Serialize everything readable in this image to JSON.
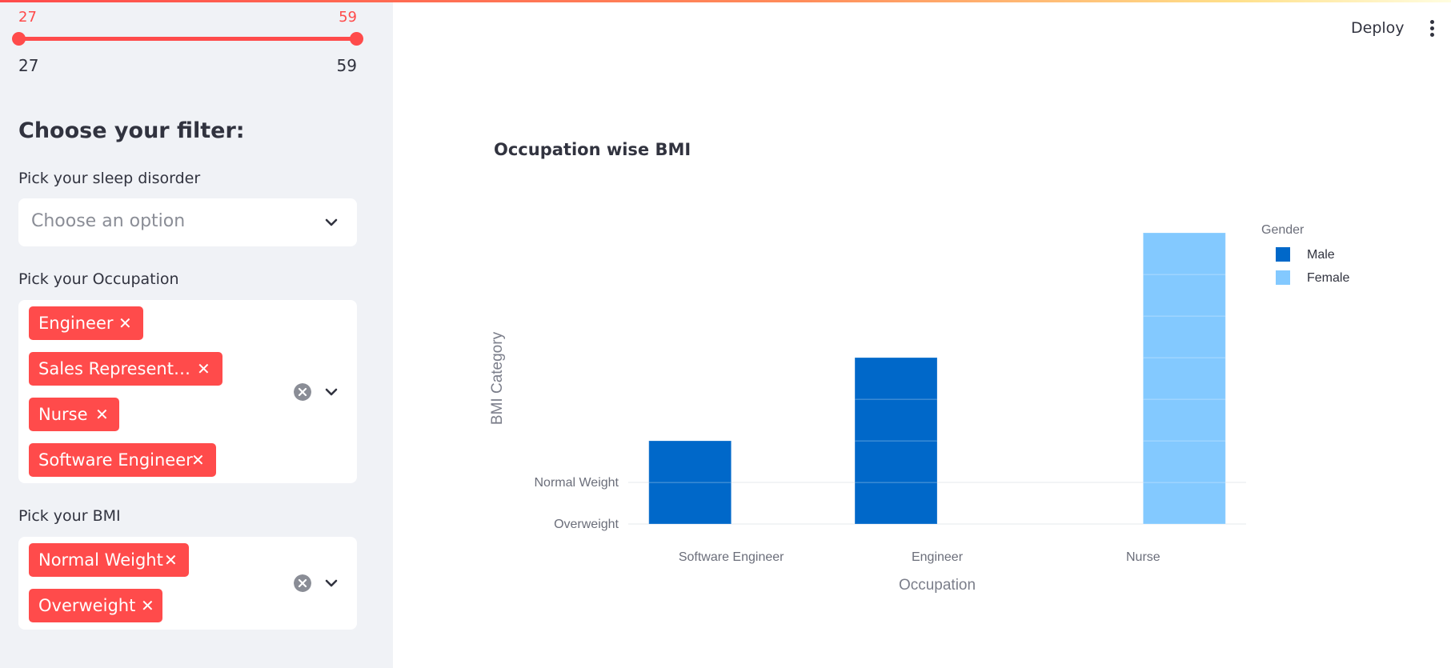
{
  "sidebar": {
    "age_slider": {
      "min_selected": "27",
      "max_selected": "59",
      "range_min": "27",
      "range_max": "59",
      "fill_fraction": 1.0
    },
    "filter_heading": "Choose your filter:",
    "sleep_disorder": {
      "label": "Pick your sleep disorder",
      "placeholder": "Choose an option"
    },
    "occupation": {
      "label": "Pick your Occupation",
      "chips": [
        "Engineer",
        "Sales Represent…",
        "Nurse",
        "Software Engineer"
      ]
    },
    "bmi": {
      "label": "Pick your BMI",
      "chips": [
        "Normal Weight",
        "Overweight"
      ]
    }
  },
  "header": {
    "deploy_label": "Deploy"
  },
  "icons": {
    "chip_remove": "close-icon",
    "clear_all": "clear-circle-icon",
    "dropdown": "chevron-down-icon",
    "menu": "kebab-menu-icon"
  },
  "colors": {
    "accent": "#ff4b4b",
    "male": "#0068c9",
    "female": "#83c9ff",
    "sidebar_bg": "#f0f2f6"
  },
  "chart_data": {
    "type": "bar",
    "title": "Occupation wise BMI",
    "xlabel": "Occupation",
    "ylabel": "BMI Category",
    "categories": [
      "Software Engineer",
      "Engineer",
      "Nurse"
    ],
    "y_ticks": [
      "Overweight",
      "Normal Weight"
    ],
    "legend_title": "Gender",
    "legend_position": "top-right",
    "series": [
      {
        "name": "Male",
        "color": "#0068c9",
        "values": [
          2,
          4,
          0
        ]
      },
      {
        "name": "Female",
        "color": "#83c9ff",
        "values": [
          0,
          0,
          7
        ]
      }
    ],
    "barmode": "group",
    "stack_segment_lines": true
  }
}
